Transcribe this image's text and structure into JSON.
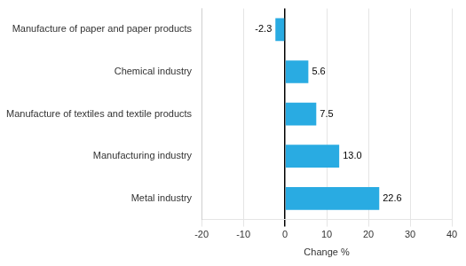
{
  "chart_data": {
    "type": "bar",
    "orientation": "horizontal",
    "categories": [
      "Manufacture of paper and paper products",
      "Chemical industry",
      "Manufacture of textiles and textile products",
      "Manufacturing industry",
      "Metal industry"
    ],
    "values": [
      -2.3,
      5.6,
      7.5,
      13.0,
      22.6
    ],
    "value_labels": [
      "-2.3",
      "5.6",
      "7.5",
      "13.0",
      "22.6"
    ],
    "data_labels": true,
    "color": "#29abe2",
    "xlabel": "Change %",
    "xlim": [
      -20,
      40
    ],
    "xticks": [
      -20,
      -10,
      0,
      10,
      20,
      30,
      40
    ],
    "grid": true
  }
}
